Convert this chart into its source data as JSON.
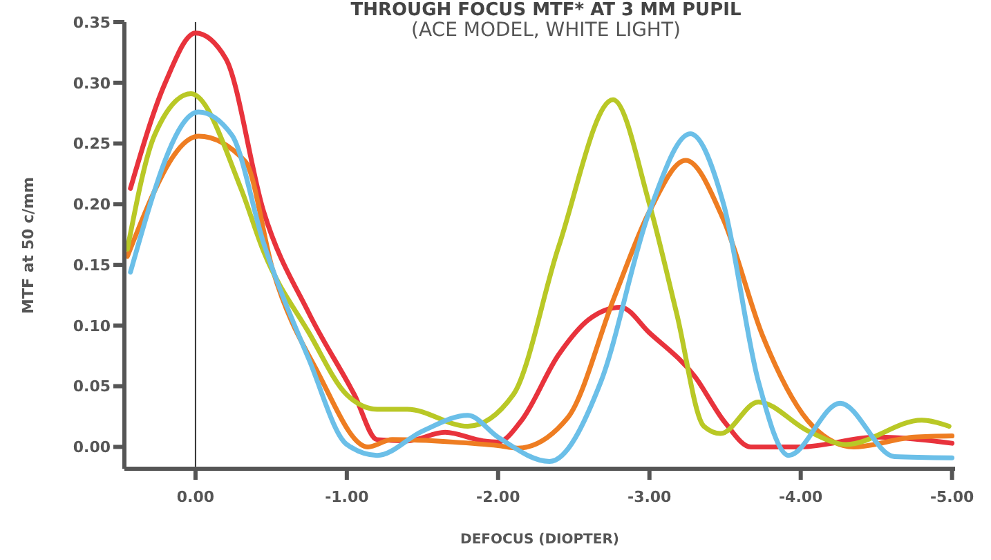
{
  "chart_data": {
    "type": "line",
    "title": "THROUGH FOCUS MTF* AT 3 MM PUPIL",
    "subtitle": "(ACE MODEL, WHITE LIGHT)",
    "xlabel": "DEFOCUS (DIOPTER)",
    "ylabel": "MTF at 50 c/mm",
    "xlim": [
      0.47,
      -5.02
    ],
    "ylim": [
      -0.018,
      0.35
    ],
    "xticks": [
      {
        "value": 0,
        "label": "0.00"
      },
      {
        "value": -1,
        "label": "-1.00"
      },
      {
        "value": -2,
        "label": "-2.00"
      },
      {
        "value": -3,
        "label": "-3.00"
      },
      {
        "value": -4,
        "label": "-4.00"
      },
      {
        "value": -5,
        "label": "-5.00"
      }
    ],
    "yticks": [
      {
        "value": 0,
        "label": "0.00"
      },
      {
        "value": 0.05,
        "label": "0.05"
      },
      {
        "value": 0.1,
        "label": "0.10"
      },
      {
        "value": 0.15,
        "label": "0.15"
      },
      {
        "value": 0.2,
        "label": "0.20"
      },
      {
        "value": 0.25,
        "label": "0.25"
      },
      {
        "value": 0.3,
        "label": "0.30"
      },
      {
        "value": 0.35,
        "label": "0.35"
      }
    ],
    "grid": false,
    "line_style": "solid",
    "ref_lines": [
      {
        "axis": "x",
        "value": 0,
        "color": "#333333"
      }
    ],
    "series": [
      {
        "color": "#e8333c",
        "x": [
          0.43,
          0.2,
          0,
          -0.2,
          -0.45,
          -0.75,
          -1.05,
          -1.2,
          -1.4,
          -1.65,
          -1.9,
          -2.0,
          -2.15,
          -2.4,
          -2.6,
          -2.81,
          -3.0,
          -3.3,
          -3.5,
          -3.67,
          -4.0,
          -4.5,
          -5.0
        ],
        "values": [
          0.213,
          0.3,
          0.341,
          0.32,
          0.194,
          0.11,
          0.043,
          0.006,
          0.005,
          0.012,
          0.005,
          0.004,
          0.021,
          0.076,
          0.105,
          0.115,
          0.094,
          0.058,
          0.02,
          0.0,
          0.0,
          0.008,
          0.003
        ]
      },
      {
        "color": "#ee7d22",
        "x": [
          0.45,
          -0.02,
          -0.33,
          -0.51,
          -0.81,
          -1.14,
          -1.3,
          -1.7,
          -2.0,
          -2.13,
          -2.46,
          -2.77,
          -3.0,
          -3.24,
          -3.49,
          -3.75,
          -4.08,
          -4.35,
          -4.75,
          -5.0
        ],
        "values": [
          0.157,
          0.256,
          0.235,
          0.146,
          0.061,
          0.0,
          0.006,
          0.004,
          0.001,
          -0.001,
          0.024,
          0.124,
          0.194,
          0.236,
          0.187,
          0.091,
          0.017,
          0.0,
          0.008,
          0.009
        ]
      },
      {
        "color": "#b9c826",
        "x": [
          0.45,
          0.27,
          0.03,
          -0.3,
          -0.45,
          -0.75,
          -1.0,
          -1.2,
          -1.4,
          -1.8,
          -2.1,
          -2.4,
          -2.76,
          -3.0,
          -3.18,
          -3.36,
          -3.47,
          -3.72,
          -4.05,
          -4.3,
          -4.8,
          -4.98
        ],
        "values": [
          0.163,
          0.257,
          0.291,
          0.213,
          0.161,
          0.094,
          0.043,
          0.031,
          0.031,
          0.017,
          0.043,
          0.165,
          0.286,
          0.2,
          0.11,
          0.017,
          0.011,
          0.037,
          0.013,
          0.002,
          0.022,
          0.017
        ]
      },
      {
        "color": "#6bbfe8",
        "x": [
          0.43,
          -0.02,
          -0.24,
          -0.45,
          -0.75,
          -1.0,
          -1.2,
          -1.5,
          -1.8,
          -2.0,
          -2.34,
          -2.68,
          -3.0,
          -3.27,
          -3.49,
          -3.72,
          -3.92,
          -4.26,
          -4.62,
          -5.0
        ],
        "values": [
          0.144,
          0.276,
          0.257,
          0.168,
          0.072,
          0.002,
          -0.007,
          0.013,
          0.026,
          0.008,
          -0.012,
          0.054,
          0.194,
          0.258,
          0.2,
          0.054,
          -0.007,
          0.036,
          -0.008,
          -0.009
        ]
      }
    ]
  }
}
